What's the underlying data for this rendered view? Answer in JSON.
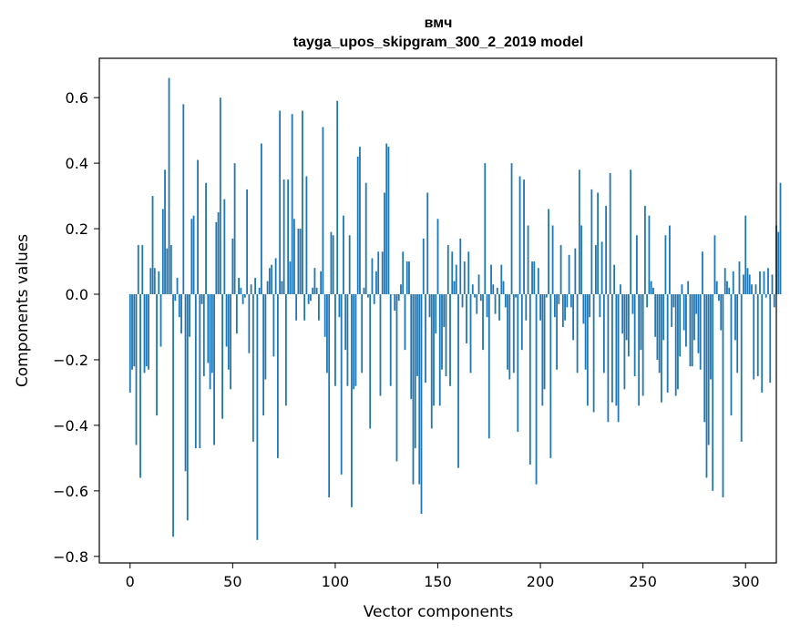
{
  "colors": {
    "bar": "#1f77b4",
    "axis": "#000000",
    "background": "#ffffff"
  },
  "chart_data": {
    "type": "bar",
    "title": "вмч",
    "subtitle": "tayga_upos_skipgram_300_2_2019 model",
    "xlabel": "Vector components",
    "ylabel": "Components values",
    "xlim": [
      -15,
      315
    ],
    "ylim": [
      -0.82,
      0.72
    ],
    "xticks": [
      0,
      50,
      100,
      150,
      200,
      250,
      300
    ],
    "yticks": [
      -0.8,
      -0.6,
      -0.4,
      -0.2,
      0.0,
      0.2,
      0.4,
      0.6
    ],
    "ytick_labels": [
      "−0.8",
      "−0.6",
      "−0.4",
      "−0.2",
      "0.0",
      "0.2",
      "0.4",
      "0.6"
    ],
    "xtick_labels": [
      "0",
      "50",
      "100",
      "150",
      "200",
      "250",
      "300"
    ],
    "values": [
      -0.3,
      -0.23,
      -0.22,
      -0.46,
      0.15,
      -0.56,
      0.15,
      -0.24,
      -0.22,
      -0.23,
      0.08,
      0.3,
      0.08,
      -0.37,
      0.07,
      -0.16,
      0.26,
      0.38,
      0.14,
      0.66,
      0.15,
      -0.74,
      -0.02,
      0.05,
      -0.07,
      -0.12,
      0.58,
      -0.54,
      -0.69,
      -0.13,
      0.23,
      0.24,
      -0.47,
      0.41,
      -0.47,
      -0.03,
      -0.25,
      0.34,
      -0.21,
      -0.29,
      -0.24,
      -0.46,
      0.22,
      0.25,
      0.6,
      -0.38,
      0.29,
      -0.16,
      -0.23,
      -0.29,
      0.17,
      0.4,
      -0.12,
      0.05,
      0.02,
      -0.03,
      -0.01,
      0.32,
      -0.18,
      0.03,
      -0.45,
      0.05,
      -0.75,
      0.02,
      0.46,
      -0.37,
      -0.26,
      0.04,
      0.08,
      0.09,
      -0.19,
      0.11,
      -0.5,
      0.56,
      0.04,
      0.35,
      -0.34,
      0.35,
      0.1,
      0.55,
      0.23,
      -0.08,
      0.2,
      0.2,
      0.56,
      -0.08,
      0.36,
      -0.03,
      -0.02,
      0.02,
      0.08,
      0.02,
      -0.08,
      0.07,
      0.51,
      -0.13,
      -0.24,
      -0.62,
      0.19,
      0.18,
      -0.28,
      0.59,
      -0.07,
      -0.55,
      0.24,
      -0.17,
      -0.28,
      0.18,
      -0.65,
      -0.29,
      -0.28,
      0.42,
      0.45,
      -0.24,
      0.02,
      0.34,
      -0.01,
      -0.41,
      0.11,
      -0.03,
      0.07,
      0.13,
      -0.31,
      0.13,
      0.31,
      0.46,
      0.45,
      -0.28,
      0.0,
      -0.05,
      -0.51,
      -0.02,
      0.03,
      0.13,
      -0.17,
      0.1,
      0.1,
      -0.32,
      -0.58,
      -0.47,
      -0.25,
      -0.58,
      -0.67,
      0.17,
      -0.27,
      0.31,
      -0.07,
      -0.41,
      -0.34,
      -0.12,
      0.23,
      -0.34,
      -0.23,
      -0.1,
      -0.25,
      0.15,
      -0.28,
      0.13,
      0.04,
      0.09,
      -0.53,
      0.17,
      -0.04,
      0.1,
      -0.15,
      0.13,
      -0.24,
      0.03,
      -0.01,
      -0.06,
      0.06,
      -0.02,
      -0.17,
      0.4,
      -0.07,
      -0.44,
      0.09,
      0.03,
      -0.06,
      0.02,
      -0.08,
      0.09,
      0.04,
      -0.04,
      -0.23,
      -0.26,
      0.4,
      -0.24,
      -0.01,
      -0.42,
      0.36,
      -0.17,
      0.35,
      -0.08,
      0.21,
      -0.52,
      0.1,
      0.1,
      -0.58,
      0.08,
      -0.08,
      -0.34,
      -0.29,
      -0.01,
      0.26,
      -0.5,
      0.21,
      -0.07,
      -0.23,
      -0.03,
      0.15,
      -0.1,
      -0.08,
      -0.04,
      0.12,
      -0.04,
      -0.14,
      0.14,
      -0.24,
      0.38,
      0.21,
      -0.09,
      -0.23,
      -0.34,
      -0.07,
      0.32,
      -0.36,
      0.15,
      0.31,
      -0.07,
      0.16,
      -0.24,
      0.27,
      -0.39,
      0.37,
      -0.33,
      0.09,
      -0.34,
      -0.39,
      0.03,
      -0.12,
      -0.29,
      -0.14,
      -0.19,
      0.38,
      -0.06,
      -0.25,
      0.18,
      -0.34,
      -0.17,
      -0.31,
      0.27,
      -0.04,
      0.24,
      0.04,
      0.02,
      -0.13,
      -0.2,
      -0.24,
      -0.33,
      -0.14,
      0.18,
      -0.3,
      0.21,
      -0.1,
      -0.04,
      -0.31,
      -0.29,
      -0.19,
      0.03,
      -0.11,
      -0.16,
      0.04,
      -0.22,
      -0.22,
      -0.14,
      -0.06,
      -0.18,
      -0.23,
      0.13,
      -0.39,
      -0.56,
      -0.46,
      -0.26,
      -0.6,
      0.18,
      0.04,
      -0.02,
      -0.11,
      -0.62,
      0.08,
      0.04,
      0.02,
      -0.37,
      0.07,
      -0.14,
      -0.24,
      0.1,
      -0.45,
      0.06,
      0.24,
      0.08,
      0.06,
      0.03,
      -0.26,
      0.03,
      -0.25,
      0.07,
      -0.3,
      0.07,
      -0.01,
      0.08,
      -0.27,
      0.06,
      -0.04,
      0.21,
      0.19,
      0.34
    ]
  }
}
